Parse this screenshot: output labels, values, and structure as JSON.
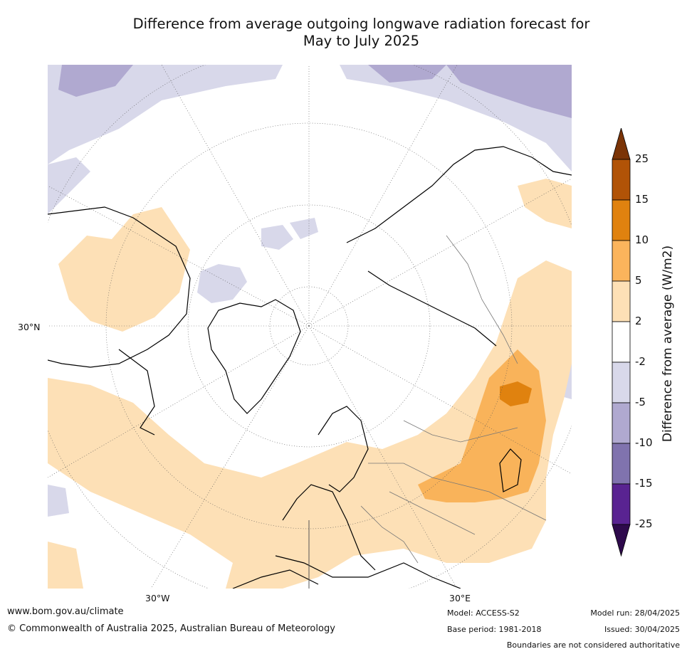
{
  "title": {
    "line1": "Difference from average outgoing longwave radiation forecast for",
    "line2": "May to July 2025"
  },
  "map": {
    "projection": "north-polar-stereographic",
    "graticule": "dotted",
    "labels": {
      "lat_left": "30°N",
      "lon_bottom_left": "30°W",
      "lon_bottom_right": "30°E"
    },
    "colors": {
      "neg_2_5": "#d8d8ea",
      "neg_5_10": "#b0a9d0",
      "pos_2_5": "#fde0b6",
      "pos_5_10": "#f9b35a",
      "pos_10_15": "#e0820f"
    }
  },
  "legend": {
    "title": "Difference from average (W/m2)",
    "ticks": [
      "25",
      "15",
      "10",
      "5",
      "2",
      "-2",
      "-5",
      "-10",
      "-15",
      "-25"
    ],
    "bins": [
      {
        "range": ">25",
        "color": "#7b3406"
      },
      {
        "range": "15–25",
        "color": "#b15307"
      },
      {
        "range": "10–15",
        "color": "#e0820f"
      },
      {
        "range": "5–10",
        "color": "#fbb45c"
      },
      {
        "range": "2–5",
        "color": "#fde0b6"
      },
      {
        "range": "-2–2",
        "color": "#ffffff"
      },
      {
        "range": "-5–-2",
        "color": "#d8d8ea"
      },
      {
        "range": "-10–-5",
        "color": "#b0a9d0"
      },
      {
        "range": "-15–-10",
        "color": "#8073ae"
      },
      {
        "range": "-25–-15",
        "color": "#592391"
      },
      {
        "range": "<-25",
        "color": "#2e0a4c"
      }
    ]
  },
  "footer": {
    "url": "www.bom.gov.au/climate",
    "copyright": "© Commonwealth of Australia 2025, Australian Bureau of Meteorology",
    "model": "Model: ACCESS-S2",
    "base_period": "Base period: 1981-2018",
    "model_run": "Model run: 28/04/2025",
    "issued": "Issued: 30/04/2025",
    "disclaimer": "Boundaries are not considered authoritative"
  }
}
